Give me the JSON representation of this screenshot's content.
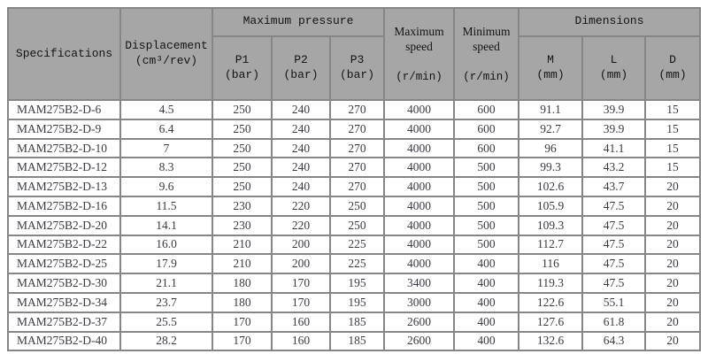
{
  "colors": {
    "header_bg": "#a6a6a6",
    "header_text": "#141414",
    "body_text": "#3a3a42",
    "grid_line": "#868686",
    "outer_line": "#4c4c4c",
    "page_bg": "#ffffff"
  },
  "table": {
    "header": {
      "specifications": "Specifications",
      "displacement": "Displacement\n(cm³/rev)",
      "max_pressure": "Maximum pressure",
      "p1": "P1\n(bar)",
      "p2": "P2\n(bar)",
      "p3": "P3\n(bar)",
      "max_speed_name": "Maximum\nspeed",
      "min_speed_name": "Minimum\nspeed",
      "speed_unit": "(r/min)",
      "dimensions": "Dimensions",
      "m": "M\n(mm)",
      "l": "L\n(mm)",
      "d": "D\n(mm)"
    },
    "rows": [
      [
        "MAM275B2-D-6",
        "4.5",
        "250",
        "240",
        "270",
        "4000",
        "600",
        "91.1",
        "39.9",
        "15"
      ],
      [
        "MAM275B2-D-9",
        "6.4",
        "250",
        "240",
        "270",
        "4000",
        "600",
        "92.7",
        "39.9",
        "15"
      ],
      [
        "MAM275B2-D-10",
        "7",
        "250",
        "240",
        "270",
        "4000",
        "600",
        "96",
        "41.1",
        "15"
      ],
      [
        "MAM275B2-D-12",
        "8.3",
        "250",
        "240",
        "270",
        "4000",
        "500",
        "99.3",
        "43.2",
        "15"
      ],
      [
        "MAM275B2-D-13",
        "9.6",
        "250",
        "240",
        "270",
        "4000",
        "500",
        "102.6",
        "43.7",
        "20"
      ],
      [
        "MAM275B2-D-16",
        "11.5",
        "230",
        "220",
        "250",
        "4000",
        "500",
        "105.9",
        "47.5",
        "20"
      ],
      [
        "MAM275B2-D-20",
        "14.1",
        "230",
        "220",
        "250",
        "4000",
        "500",
        "109.3",
        "47.5",
        "20"
      ],
      [
        "MAM275B2-D-22",
        "16.0",
        "210",
        "200",
        "225",
        "4000",
        "500",
        "112.7",
        "47.5",
        "20"
      ],
      [
        "MAM275B2-D-25",
        "17.9",
        "210",
        "200",
        "225",
        "4000",
        "400",
        "116",
        "47.5",
        "20"
      ],
      [
        "MAM275B2-D-30",
        "21.1",
        "180",
        "170",
        "195",
        "3400",
        "400",
        "119.3",
        "47.5",
        "20"
      ],
      [
        "MAM275B2-D-34",
        "23.7",
        "180",
        "170",
        "195",
        "3000",
        "400",
        "122.6",
        "55.1",
        "20"
      ],
      [
        "MAM275B2-D-37",
        "25.5",
        "170",
        "160",
        "185",
        "2600",
        "400",
        "127.6",
        "61.8",
        "20"
      ],
      [
        "MAM275B2-D-40",
        "28.2",
        "170",
        "160",
        "185",
        "2600",
        "400",
        "132.6",
        "64.3",
        "20"
      ]
    ]
  }
}
